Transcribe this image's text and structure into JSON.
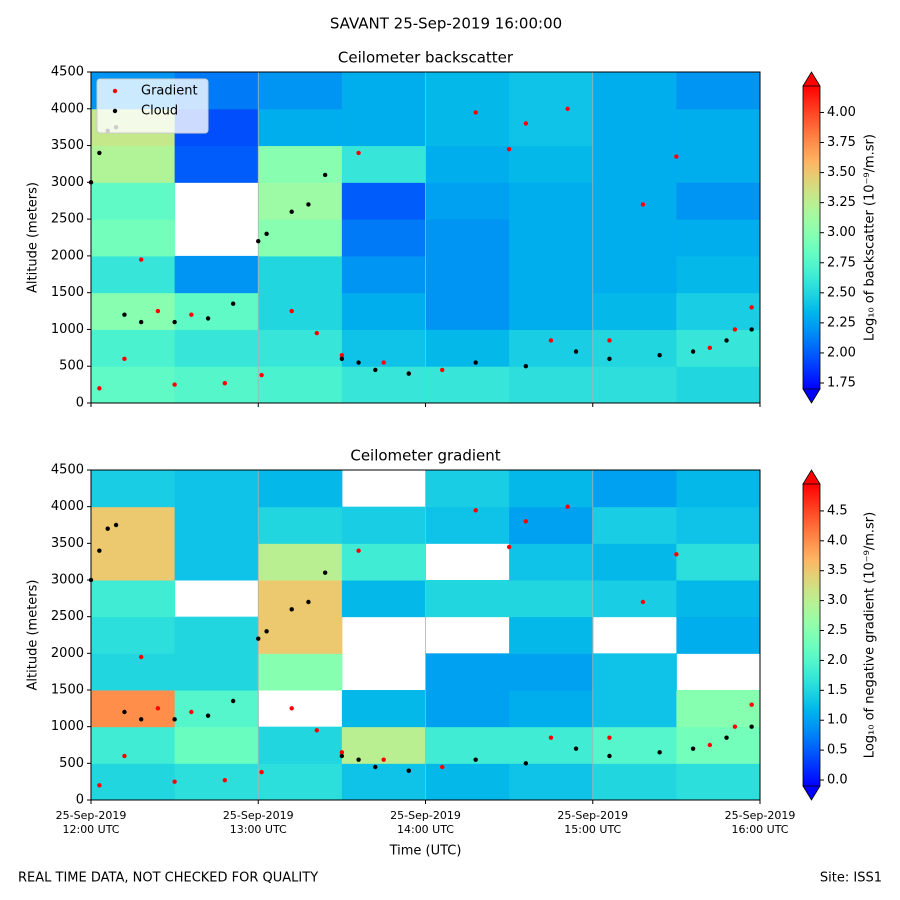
{
  "title": "SAVANT 25-Sep-2019 16:00:00",
  "footer_note": "REAL TIME DATA, NOT CHECKED FOR QUALITY",
  "site": "Site: ISS1",
  "chart_data": [
    {
      "type": "heatmap",
      "title": "Ceilometer backscatter",
      "ylabel": "Altitude (meters)",
      "xlim": [
        12,
        16
      ],
      "ylim": [
        0,
        4500
      ],
      "xticks": [
        12,
        13,
        14,
        15,
        16
      ],
      "yticks": [
        0,
        500,
        1000,
        1500,
        2000,
        2500,
        3000,
        3500,
        4000,
        4500
      ],
      "grid": true,
      "legend": "upper left",
      "colorbar_label": "Log₁₀ of backscatter (10⁻⁹/m.sr)",
      "clim": [
        1.7,
        4.22
      ],
      "cticks": [
        1.75,
        {
          "value": 2,
          "label": "2.00"
        },
        2.25,
        {
          "value": 2.5,
          "label": "2.50"
        },
        2.75,
        {
          "value": 3,
          "label": "3.00"
        },
        3.25,
        {
          "value": 3.5,
          "label": "3.50"
        },
        3.75,
        {
          "value": 4,
          "label": "4.00"
        }
      ],
      "xbins": [
        12,
        12.5,
        13,
        13.5,
        14,
        14.5,
        15,
        15.5,
        16
      ],
      "ybins": [
        0,
        500,
        1000,
        1500,
        2000,
        2500,
        3000,
        3500,
        4000,
        4500
      ],
      "z": [
        [
          2.8,
          2.75,
          2.7,
          2.6,
          2.6,
          2.55,
          2.55,
          2.5
        ],
        [
          2.7,
          2.6,
          2.6,
          2.4,
          2.35,
          2.45,
          2.5,
          2.6
        ],
        [
          3.0,
          2.8,
          2.5,
          2.3,
          2.2,
          2.3,
          2.35,
          2.45
        ],
        [
          2.6,
          2.2,
          2.5,
          2.2,
          2.2,
          2.3,
          2.3,
          2.35
        ],
        [
          2.9,
          null,
          3.0,
          2.1,
          2.2,
          2.3,
          2.3,
          2.3
        ],
        [
          2.8,
          null,
          3.1,
          2.0,
          2.25,
          2.3,
          2.3,
          2.2
        ],
        [
          3.2,
          2.0,
          3.0,
          2.6,
          2.3,
          2.35,
          2.3,
          2.3
        ],
        [
          3.3,
          1.95,
          2.3,
          2.3,
          2.35,
          2.4,
          2.3,
          2.3
        ],
        [
          2.2,
          2.1,
          2.2,
          2.3,
          2.35,
          2.4,
          2.3,
          2.2
        ]
      ],
      "series": [
        {
          "name": "Gradient",
          "color": "#ff0000",
          "x": [
            12.05,
            12.2,
            12.3,
            12.4,
            12.5,
            12.6,
            12.8,
            13.02,
            13.2,
            13.35,
            13.5,
            13.6,
            13.75,
            13.9,
            14.1,
            14.3,
            14.5,
            14.6,
            14.75,
            14.85,
            15.1,
            15.3,
            15.5,
            15.7,
            15.85,
            15.95
          ],
          "values": [
            200,
            600,
            1950,
            1250,
            250,
            1200,
            270,
            380,
            1250,
            950,
            650,
            3400,
            550,
            400,
            450,
            3950,
            3450,
            3800,
            850,
            4000,
            850,
            2700,
            3350,
            750,
            1000,
            1300
          ]
        },
        {
          "name": "Cloud",
          "color": "#000000",
          "x": [
            12.0,
            12.05,
            12.1,
            12.15,
            12.2,
            12.3,
            12.5,
            12.7,
            12.85,
            13.0,
            13.05,
            13.2,
            13.3,
            13.4,
            13.5,
            13.6,
            13.7,
            13.9,
            14.3,
            14.6,
            14.9,
            15.1,
            15.4,
            15.6,
            15.8,
            15.95
          ],
          "values": [
            3000,
            3400,
            3700,
            3750,
            1200,
            1100,
            1100,
            1150,
            1350,
            2200,
            2300,
            2600,
            2700,
            3100,
            600,
            550,
            450,
            400,
            550,
            500,
            700,
            600,
            650,
            700,
            850,
            1000
          ]
        }
      ]
    },
    {
      "type": "heatmap",
      "title": "Ceilometer gradient",
      "ylabel": "Altitude (meters)",
      "xlabel": "Time (UTC)",
      "xlim": [
        12,
        16
      ],
      "ylim": [
        0,
        4500
      ],
      "xticks": [
        {
          "value": 12,
          "label": "25-Sep-2019\n12:00 UTC"
        },
        {
          "value": 13,
          "label": "25-Sep-2019\n13:00 UTC"
        },
        {
          "value": 14,
          "label": "25-Sep-2019\n14:00 UTC"
        },
        {
          "value": 15,
          "label": "25-Sep-2019\n15:00 UTC"
        },
        {
          "value": 16,
          "label": "25-Sep-2019\n16:00 UTC"
        }
      ],
      "yticks": [
        0,
        500,
        1000,
        1500,
        2000,
        2500,
        3000,
        3500,
        4000,
        4500
      ],
      "grid": true,
      "colorbar_label": "Log₁₀ of negative gradient (10⁻⁹/m.sr)",
      "clim": [
        -0.1,
        4.95
      ],
      "cticks": [
        {
          "value": 0,
          "label": "0.0"
        },
        0.5,
        {
          "value": 1,
          "label": "1.0"
        },
        1.5,
        {
          "value": 2,
          "label": "2.0"
        },
        2.5,
        {
          "value": 3,
          "label": "3.0"
        },
        3.5,
        {
          "value": 4,
          "label": "4.0"
        },
        4.5
      ],
      "xbins": [
        12,
        12.5,
        13,
        13.5,
        14,
        14.5,
        15,
        15.5,
        16
      ],
      "ybins": [
        0,
        500,
        1000,
        1500,
        2000,
        2500,
        3000,
        3500,
        4000,
        4500
      ],
      "z": [
        [
          1.5,
          1.6,
          1.6,
          1.3,
          1.2,
          1.3,
          1.5,
          1.6
        ],
        [
          1.8,
          2.2,
          1.5,
          3.0,
          1.8,
          1.8,
          2.0,
          2.3
        ],
        [
          4.0,
          2.0,
          null,
          1.2,
          1.0,
          1.1,
          1.3,
          2.5
        ],
        [
          1.5,
          1.5,
          2.5,
          null,
          1.0,
          1.0,
          1.3,
          null
        ],
        [
          1.6,
          1.5,
          3.5,
          null,
          null,
          1.2,
          null,
          1.1
        ],
        [
          1.8,
          null,
          3.5,
          1.2,
          1.5,
          1.5,
          1.4,
          1.2
        ],
        [
          3.5,
          1.3,
          3.0,
          1.8,
          null,
          1.3,
          1.2,
          1.6
        ],
        [
          3.5,
          1.3,
          1.5,
          1.4,
          1.3,
          1.0,
          1.4,
          1.3
        ],
        [
          1.4,
          1.3,
          1.2,
          null,
          1.4,
          1.2,
          1.0,
          1.2
        ]
      ],
      "series": [
        {
          "color": "#ff0000",
          "x": [
            12.05,
            12.2,
            12.3,
            12.4,
            12.5,
            12.6,
            12.8,
            13.02,
            13.2,
            13.35,
            13.5,
            13.6,
            13.75,
            13.9,
            14.1,
            14.3,
            14.5,
            14.6,
            14.75,
            14.85,
            15.1,
            15.3,
            15.5,
            15.7,
            15.85,
            15.95
          ],
          "values": [
            200,
            600,
            1950,
            1250,
            250,
            1200,
            270,
            380,
            1250,
            950,
            650,
            3400,
            550,
            400,
            450,
            3950,
            3450,
            3800,
            850,
            4000,
            850,
            2700,
            3350,
            750,
            1000,
            1300
          ]
        },
        {
          "color": "#000000",
          "x": [
            12.0,
            12.05,
            12.1,
            12.15,
            12.2,
            12.3,
            12.5,
            12.7,
            12.85,
            13.0,
            13.05,
            13.2,
            13.3,
            13.4,
            13.5,
            13.6,
            13.7,
            13.9,
            14.3,
            14.6,
            14.9,
            15.1,
            15.4,
            15.6,
            15.8,
            15.95
          ],
          "values": [
            3000,
            3400,
            3700,
            3750,
            1200,
            1100,
            1100,
            1150,
            1350,
            2200,
            2300,
            2600,
            2700,
            3100,
            600,
            550,
            450,
            400,
            550,
            500,
            700,
            600,
            650,
            700,
            850,
            1000
          ]
        }
      ]
    }
  ]
}
